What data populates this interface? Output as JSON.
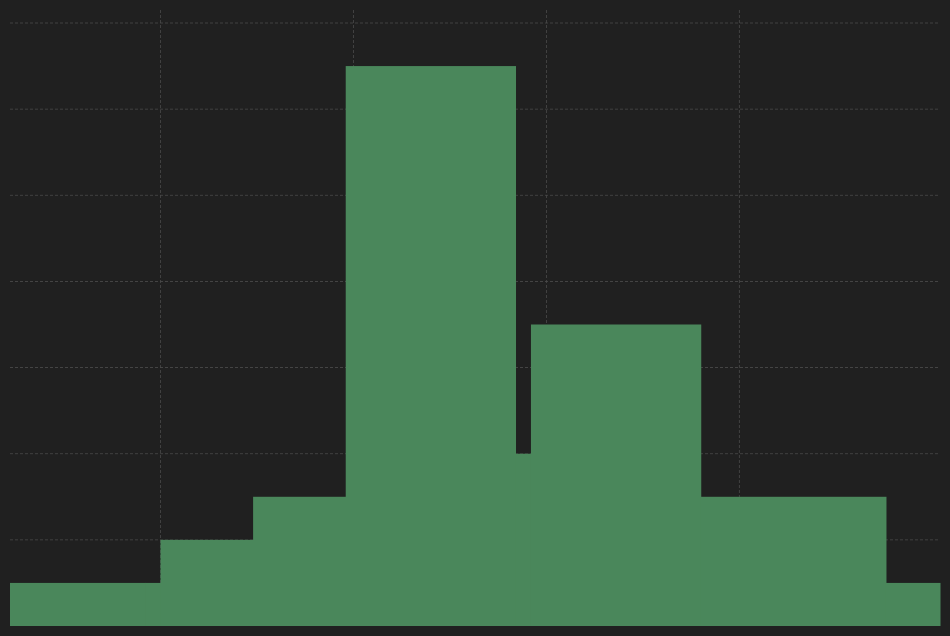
{
  "chart_data": {
    "type": "area",
    "step": "post",
    "x": [
      0,
      0.7,
      0.78,
      1.26,
      1.74,
      2.62,
      2.7,
      3.58,
      4.54,
      4.82
    ],
    "y": [
      1,
      1,
      2,
      3,
      13,
      4,
      7,
      3,
      1,
      1
    ],
    "xlim": [
      0,
      4.82
    ],
    "ylim": [
      0,
      14
    ],
    "x_gridlines": [
      0.78,
      1.78,
      2.78,
      3.78
    ],
    "y_gridlines": [
      2,
      4,
      6,
      8,
      10,
      12,
      14
    ],
    "grid": true,
    "title": "",
    "xlabel": "",
    "ylabel": "",
    "colors": {
      "background": "#202020",
      "fill": "#4a875b",
      "grid": "#4a4a4a"
    }
  }
}
